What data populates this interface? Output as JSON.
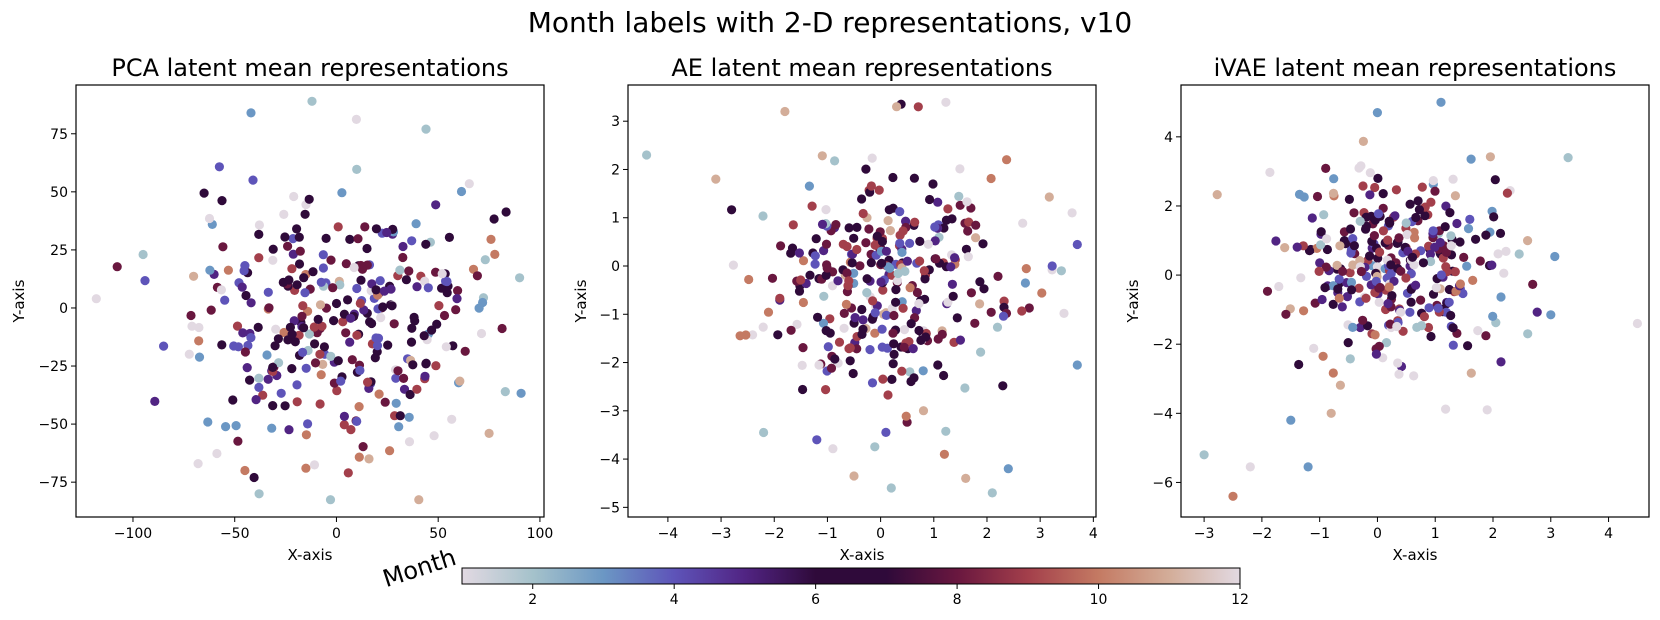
{
  "figure_title": "Month labels with 2-D representations, v10",
  "colorbar": {
    "label": "Month",
    "range": [
      1,
      12
    ],
    "ticks": [
      2,
      4,
      6,
      8,
      10,
      12
    ],
    "colormap": "twilight",
    "stops": [
      "#e2d9e2",
      "#a5c2cb",
      "#6b97c4",
      "#5e54b9",
      "#512483",
      "#2f0a3a",
      "#2f0a3a",
      "#69173f",
      "#a33f4b",
      "#c47a63",
      "#d3ad99",
      "#e2d9e2"
    ]
  },
  "chart_data": [
    {
      "type": "scatter",
      "title": "PCA latent mean representations",
      "xlabel": "X-axis",
      "ylabel": "Y-axis",
      "xlim": [
        -128,
        102
      ],
      "ylim": [
        -90,
        96
      ],
      "xticks": [
        -100,
        -50,
        0,
        50,
        100
      ],
      "yticks": [
        -75,
        -50,
        -25,
        0,
        25,
        50,
        75
      ],
      "x_center": 0,
      "y_center": -5,
      "x_spread": 38,
      "y_spread": 27,
      "n_points": 330,
      "color_by": "month",
      "notable_points": [
        {
          "x": -118,
          "y": 4,
          "month": 12
        },
        {
          "x": -42,
          "y": 84,
          "month": 3
        },
        {
          "x": -12,
          "y": 89,
          "month": 2
        },
        {
          "x": 44,
          "y": 77,
          "month": 2
        },
        {
          "x": -95,
          "y": 23,
          "month": 2
        },
        {
          "x": 90,
          "y": 13,
          "month": 2
        },
        {
          "x": -68,
          "y": -67,
          "month": 12
        },
        {
          "x": -38,
          "y": -80,
          "month": 2
        },
        {
          "x": -45,
          "y": -70,
          "month": 10
        },
        {
          "x": -15,
          "y": -69,
          "month": 10
        },
        {
          "x": 16,
          "y": -65,
          "month": 11
        },
        {
          "x": 75,
          "y": -54,
          "month": 11
        },
        {
          "x": 83,
          "y": -36,
          "month": 2
        },
        {
          "x": 48,
          "y": -55,
          "month": 12
        }
      ]
    },
    {
      "type": "scatter",
      "title": "AE latent mean representations",
      "xlabel": "X-axis",
      "ylabel": "Y-axis",
      "xlim": [
        -4.75,
        4.05
      ],
      "ylim": [
        -5.2,
        3.75
      ],
      "xticks": [
        -4,
        -3,
        -2,
        -1,
        0,
        1,
        2,
        3,
        4
      ],
      "yticks": [
        -5,
        -4,
        -3,
        -2,
        -1,
        0,
        1,
        2,
        3
      ],
      "x_center": 0.2,
      "y_center": -0.4,
      "x_spread": 1.25,
      "y_spread": 1.3,
      "n_points": 330,
      "color_by": "month",
      "notable_points": [
        {
          "x": -4.4,
          "y": 2.3,
          "month": 2
        },
        {
          "x": 3.6,
          "y": 1.1,
          "month": 12
        },
        {
          "x": 3.4,
          "y": -0.1,
          "month": 2
        },
        {
          "x": -1.8,
          "y": 3.2,
          "month": 11
        },
        {
          "x": 0.3,
          "y": 3.3,
          "month": 11
        },
        {
          "x": -3.1,
          "y": 1.8,
          "month": 11
        },
        {
          "x": 2.1,
          "y": -4.7,
          "month": 2
        },
        {
          "x": 2.4,
          "y": -4.2,
          "month": 3
        },
        {
          "x": 0.2,
          "y": -4.6,
          "month": 2
        },
        {
          "x": 1.6,
          "y": -4.4,
          "month": 11
        },
        {
          "x": -0.5,
          "y": -4.35,
          "month": 11
        },
        {
          "x": -1.2,
          "y": -3.6,
          "month": 4
        },
        {
          "x": -2.2,
          "y": -3.45,
          "month": 2
        },
        {
          "x": 1.2,
          "y": -3.9,
          "month": 10
        }
      ]
    },
    {
      "type": "scatter",
      "title": "iVAE latent mean representations",
      "xlabel": "X-axis",
      "ylabel": "Y-axis",
      "xlim": [
        -3.4,
        4.7
      ],
      "ylim": [
        -7.0,
        5.5
      ],
      "xticks": [
        -3,
        -2,
        -1,
        0,
        1,
        2,
        3,
        4
      ],
      "yticks": [
        -6,
        -4,
        -2,
        0,
        2,
        4
      ],
      "x_center": 0.3,
      "y_center": 0.2,
      "x_spread": 0.95,
      "y_spread": 1.45,
      "n_points": 330,
      "color_by": "month",
      "notable_points": [
        {
          "x": 0.0,
          "y": 4.7,
          "month": 3
        },
        {
          "x": 1.1,
          "y": 5.0,
          "month": 3
        },
        {
          "x": 3.3,
          "y": 3.4,
          "month": 2
        },
        {
          "x": 4.5,
          "y": -1.4,
          "month": 12
        },
        {
          "x": -3.0,
          "y": -5.2,
          "month": 2
        },
        {
          "x": -2.5,
          "y": -6.4,
          "month": 10
        },
        {
          "x": -2.2,
          "y": -5.55,
          "month": 12
        },
        {
          "x": -1.2,
          "y": -5.55,
          "month": 3
        },
        {
          "x": -1.5,
          "y": -4.2,
          "month": 3
        },
        {
          "x": -0.8,
          "y": -4.0,
          "month": 11
        },
        {
          "x": 1.9,
          "y": -3.9,
          "month": 12
        },
        {
          "x": 2.6,
          "y": -1.7,
          "month": 2
        },
        {
          "x": 3.0,
          "y": -1.15,
          "month": 3
        }
      ]
    }
  ]
}
